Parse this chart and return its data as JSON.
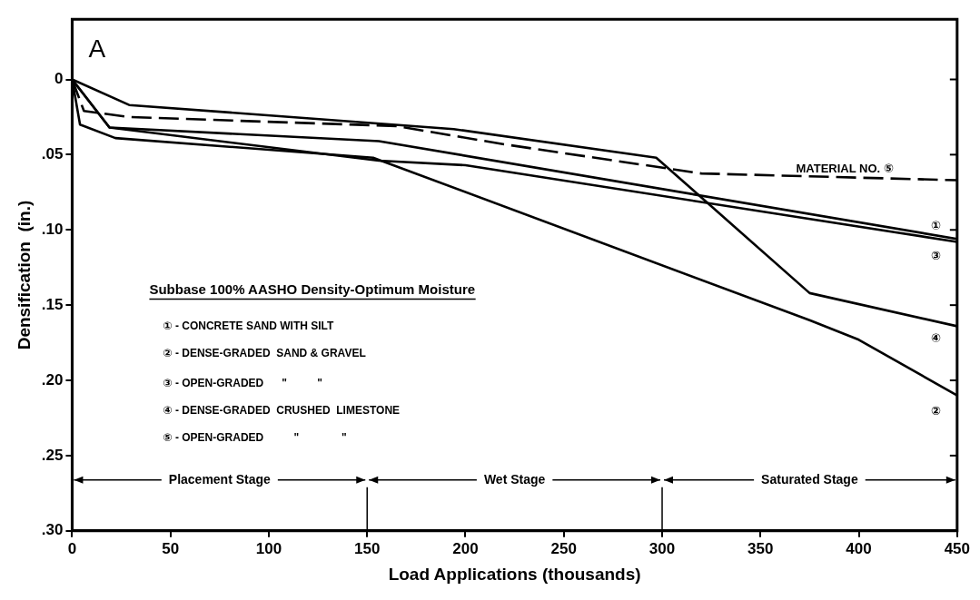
{
  "chart_data": {
    "type": "line",
    "xlabel": "Load Applications (thousands)",
    "ylabel": "Densification  (in.)",
    "series": [
      {
        "name": "①",
        "color": "#000000",
        "x": [
          0,
          19,
          156,
          450
        ],
        "values": [
          0,
          0.032,
          0.041,
          0.106
        ]
      },
      {
        "name": "②",
        "color": "#000000",
        "x": [
          0,
          4,
          22,
          153,
          375,
          400,
          450
        ],
        "values": [
          0,
          0.03,
          0.039,
          0.052,
          0.16,
          0.173,
          0.21
        ]
      },
      {
        "name": "③",
        "color": "#000000",
        "x": [
          0,
          19,
          156,
          200,
          450
        ],
        "values": [
          0,
          0.032,
          0.054,
          0.057,
          0.108
        ]
      },
      {
        "name": "④",
        "color": "#000000",
        "x": [
          0,
          29,
          194,
          297,
          375,
          450
        ],
        "values": [
          0,
          0.017,
          0.033,
          0.052,
          0.142,
          0.164
        ]
      },
      {
        "name": "MATERIAL NO. ⑤",
        "color": "#000000",
        "line_style": "dashed",
        "x": [
          0,
          6,
          29,
          165,
          219,
          320,
          450
        ],
        "values": [
          0,
          0.021,
          0.025,
          0.031,
          0.043,
          0.0625,
          0.067
        ]
      }
    ],
    "xlim": [
      0,
      450
    ],
    "xticks": [
      0,
      50,
      100,
      150,
      200,
      250,
      300,
      350,
      400,
      450
    ],
    "ylim": [
      0.3,
      -0.04
    ],
    "yticks": [
      0,
      {
        "value": 0.05,
        "label": ".05"
      },
      {
        "value": 0.1,
        "label": ".10"
      },
      {
        "value": 0.15,
        "label": ".15"
      },
      {
        "value": 0.2,
        "label": ".20"
      },
      {
        "value": 0.25,
        "label": ".25"
      },
      {
        "value": 0.3,
        "label": ".30"
      }
    ],
    "ref_lines": [
      {
        "axis": "x",
        "value": 150
      },
      {
        "axis": "x",
        "value": 300
      }
    ],
    "annotations": [
      "Placement Stage",
      "Wet Stage",
      "Saturated Stage",
      "A",
      "Subbase 100% AASHO Density-Optimum Moisture",
      "① - CONCRETE SAND WITH SILT",
      "② - DENSE-GRADED  SAND & GRAVEL",
      "③ - OPEN-GRADED      \"          \"",
      "④ - DENSE-GRADED  CRUSHED  LIMESTONE",
      "⑤ - OPEN-GRADED          \"              \""
    ],
    "grid": false,
    "legend": "right",
    "marker": "none",
    "line_style": "solid"
  }
}
